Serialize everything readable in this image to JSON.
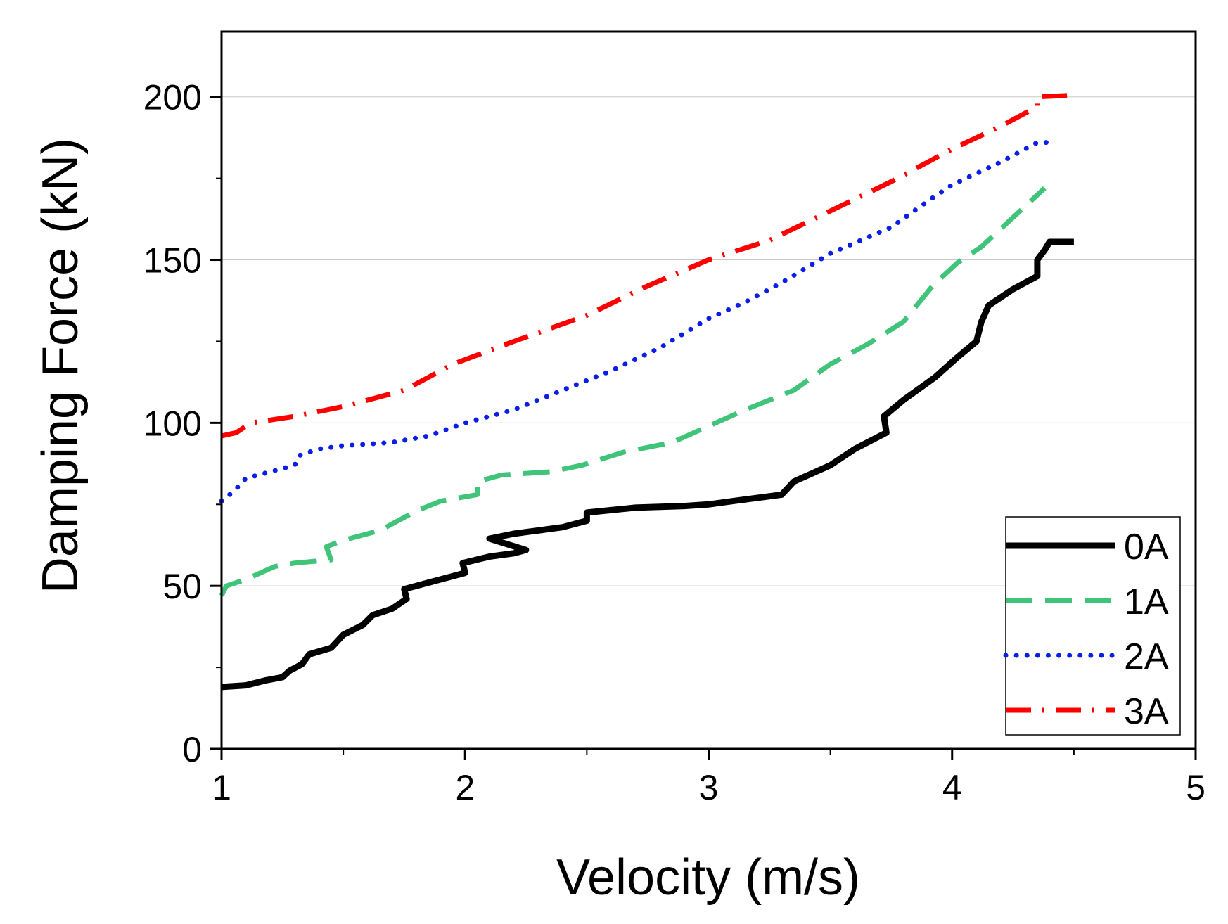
{
  "chart_data": {
    "type": "line",
    "title": "",
    "xlabel": "Velocity (m/s)",
    "ylabel": "Damping Force (kN)",
    "xlim": [
      1,
      5
    ],
    "ylim": [
      0,
      220
    ],
    "x_ticks": [
      1,
      2,
      3,
      4,
      5
    ],
    "x_tick_labels": [
      "1",
      "2",
      "3",
      "4",
      "5"
    ],
    "y_ticks": [
      0,
      50,
      100,
      150,
      200
    ],
    "y_tick_labels": [
      "0",
      "50",
      "100",
      "150",
      "200"
    ],
    "grid": "horizontal",
    "legend_position": "bottom-right",
    "series": [
      {
        "name": "0A",
        "color": "#000000",
        "style": "solid",
        "points": [
          [
            1.0,
            19
          ],
          [
            1.1,
            19.5
          ],
          [
            1.18,
            21
          ],
          [
            1.25,
            22
          ],
          [
            1.28,
            24
          ],
          [
            1.33,
            26
          ],
          [
            1.36,
            29
          ],
          [
            1.45,
            31
          ],
          [
            1.5,
            35
          ],
          [
            1.58,
            38
          ],
          [
            1.62,
            41
          ],
          [
            1.7,
            43
          ],
          [
            1.76,
            46
          ],
          [
            1.75,
            49
          ],
          [
            1.85,
            51
          ],
          [
            1.95,
            53
          ],
          [
            2.0,
            54
          ],
          [
            1.99,
            57
          ],
          [
            2.1,
            59
          ],
          [
            2.2,
            60
          ],
          [
            2.25,
            61
          ],
          [
            2.1,
            64.5
          ],
          [
            2.2,
            66
          ],
          [
            2.4,
            68
          ],
          [
            2.5,
            70
          ],
          [
            2.5,
            72.5
          ],
          [
            2.7,
            74
          ],
          [
            2.9,
            74.5
          ],
          [
            3.0,
            75
          ],
          [
            3.1,
            76
          ],
          [
            3.3,
            78
          ],
          [
            3.35,
            82
          ],
          [
            3.5,
            87
          ],
          [
            3.6,
            92
          ],
          [
            3.73,
            97
          ],
          [
            3.72,
            102
          ],
          [
            3.8,
            107
          ],
          [
            3.93,
            114
          ],
          [
            4.02,
            120
          ],
          [
            4.1,
            125
          ],
          [
            4.12,
            131
          ],
          [
            4.15,
            136
          ],
          [
            4.25,
            141
          ],
          [
            4.35,
            145
          ],
          [
            4.35,
            150
          ],
          [
            4.38,
            153
          ],
          [
            4.4,
            155.5
          ],
          [
            4.5,
            155.5
          ]
        ]
      },
      {
        "name": "1A",
        "color": "#3fc47a",
        "style": "dashed",
        "points": [
          [
            1.0,
            47
          ],
          [
            1.02,
            50
          ],
          [
            1.1,
            52
          ],
          [
            1.22,
            56
          ],
          [
            1.3,
            57
          ],
          [
            1.45,
            58
          ],
          [
            1.43,
            62
          ],
          [
            1.5,
            64
          ],
          [
            1.65,
            67
          ],
          [
            1.8,
            73
          ],
          [
            1.9,
            76
          ],
          [
            2.05,
            78
          ],
          [
            2.05,
            82
          ],
          [
            2.15,
            84
          ],
          [
            2.35,
            85
          ],
          [
            2.48,
            87
          ],
          [
            2.65,
            91
          ],
          [
            2.85,
            94
          ],
          [
            3.0,
            99
          ],
          [
            3.15,
            104
          ],
          [
            3.35,
            110
          ],
          [
            3.5,
            118
          ],
          [
            3.65,
            124
          ],
          [
            3.8,
            131
          ],
          [
            3.92,
            142
          ],
          [
            4.02,
            149
          ],
          [
            4.12,
            154
          ],
          [
            4.25,
            163
          ],
          [
            4.38,
            172
          ]
        ]
      },
      {
        "name": "2A",
        "color": "#0a1ee6",
        "style": "dotted",
        "points": [
          [
            1.0,
            76
          ],
          [
            1.05,
            79
          ],
          [
            1.1,
            83
          ],
          [
            1.2,
            85
          ],
          [
            1.3,
            87
          ],
          [
            1.32,
            90
          ],
          [
            1.4,
            92
          ],
          [
            1.5,
            93
          ],
          [
            1.7,
            94
          ],
          [
            1.85,
            96
          ],
          [
            2.0,
            100
          ],
          [
            2.2,
            104
          ],
          [
            2.4,
            110
          ],
          [
            2.6,
            116
          ],
          [
            2.8,
            123
          ],
          [
            3.0,
            132
          ],
          [
            3.15,
            137
          ],
          [
            3.3,
            143
          ],
          [
            3.5,
            152
          ],
          [
            3.75,
            160
          ],
          [
            3.9,
            168
          ],
          [
            4.0,
            173
          ],
          [
            4.2,
            180
          ],
          [
            4.35,
            186
          ],
          [
            4.42,
            186
          ]
        ]
      },
      {
        "name": "3A",
        "color": "#ff0000",
        "style": "dashdot",
        "points": [
          [
            1.0,
            96
          ],
          [
            1.06,
            97
          ],
          [
            1.12,
            100
          ],
          [
            1.3,
            102
          ],
          [
            1.5,
            105
          ],
          [
            1.75,
            110
          ],
          [
            1.95,
            118
          ],
          [
            2.2,
            125
          ],
          [
            2.5,
            133
          ],
          [
            2.75,
            142
          ],
          [
            3.0,
            150
          ],
          [
            3.25,
            156
          ],
          [
            3.5,
            165
          ],
          [
            3.75,
            174
          ],
          [
            4.0,
            184
          ],
          [
            4.2,
            191
          ],
          [
            4.35,
            197
          ],
          [
            4.35,
            200
          ],
          [
            4.5,
            200.5
          ]
        ]
      }
    ]
  }
}
